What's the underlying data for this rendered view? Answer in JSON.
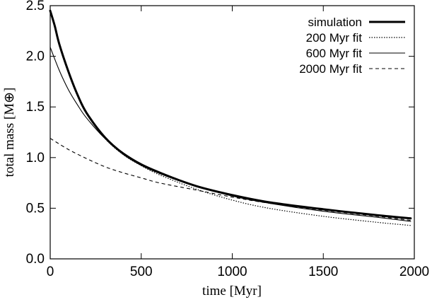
{
  "chart_data": {
    "type": "line",
    "title": "",
    "xlabel": "time [Myr]",
    "ylabel": "total mass [M⊕]",
    "xlim": [
      0,
      2000
    ],
    "ylim": [
      0.0,
      2.5
    ],
    "xticks": [
      "0",
      "500",
      "1000",
      "1500",
      "2000"
    ],
    "yticks": [
      "0.0",
      "0.5",
      "1.0",
      "1.5",
      "2.0",
      "2.5"
    ],
    "legend_position": "top-right",
    "grid": false,
    "series": [
      {
        "name": "simulation",
        "style": "thick-solid",
        "x": [
          0,
          25,
          50,
          100,
          150,
          200,
          300,
          400,
          500,
          600,
          800,
          1000,
          1200,
          1500,
          1800,
          1980
        ],
        "y": [
          2.45,
          2.3,
          2.12,
          1.85,
          1.62,
          1.44,
          1.2,
          1.04,
          0.93,
          0.85,
          0.72,
          0.63,
          0.56,
          0.49,
          0.43,
          0.4
        ]
      },
      {
        "name": "200 Myr fit",
        "style": "dotted",
        "x": [
          0,
          25,
          50,
          100,
          150,
          200,
          300,
          400,
          500,
          600,
          800,
          1000,
          1200,
          1500,
          1800,
          1980
        ],
        "y": [
          2.45,
          2.3,
          2.12,
          1.84,
          1.61,
          1.43,
          1.19,
          1.03,
          0.92,
          0.83,
          0.69,
          0.58,
          0.5,
          0.42,
          0.36,
          0.33
        ]
      },
      {
        "name": "600 Myr fit",
        "style": "thin-solid",
        "x": [
          0,
          50,
          100,
          150,
          200,
          300,
          400,
          500,
          600,
          800,
          1000,
          1200,
          1500,
          1800,
          1980
        ],
        "y": [
          2.09,
          1.86,
          1.67,
          1.52,
          1.39,
          1.19,
          1.05,
          0.94,
          0.86,
          0.72,
          0.62,
          0.55,
          0.47,
          0.41,
          0.37
        ]
      },
      {
        "name": "2000 Myr fit",
        "style": "dashed",
        "x": [
          0,
          100,
          200,
          300,
          400,
          500,
          600,
          800,
          1000,
          1200,
          1500,
          1800,
          1980
        ],
        "y": [
          1.19,
          1.08,
          0.99,
          0.91,
          0.85,
          0.8,
          0.75,
          0.68,
          0.61,
          0.55,
          0.48,
          0.42,
          0.38
        ]
      }
    ]
  }
}
